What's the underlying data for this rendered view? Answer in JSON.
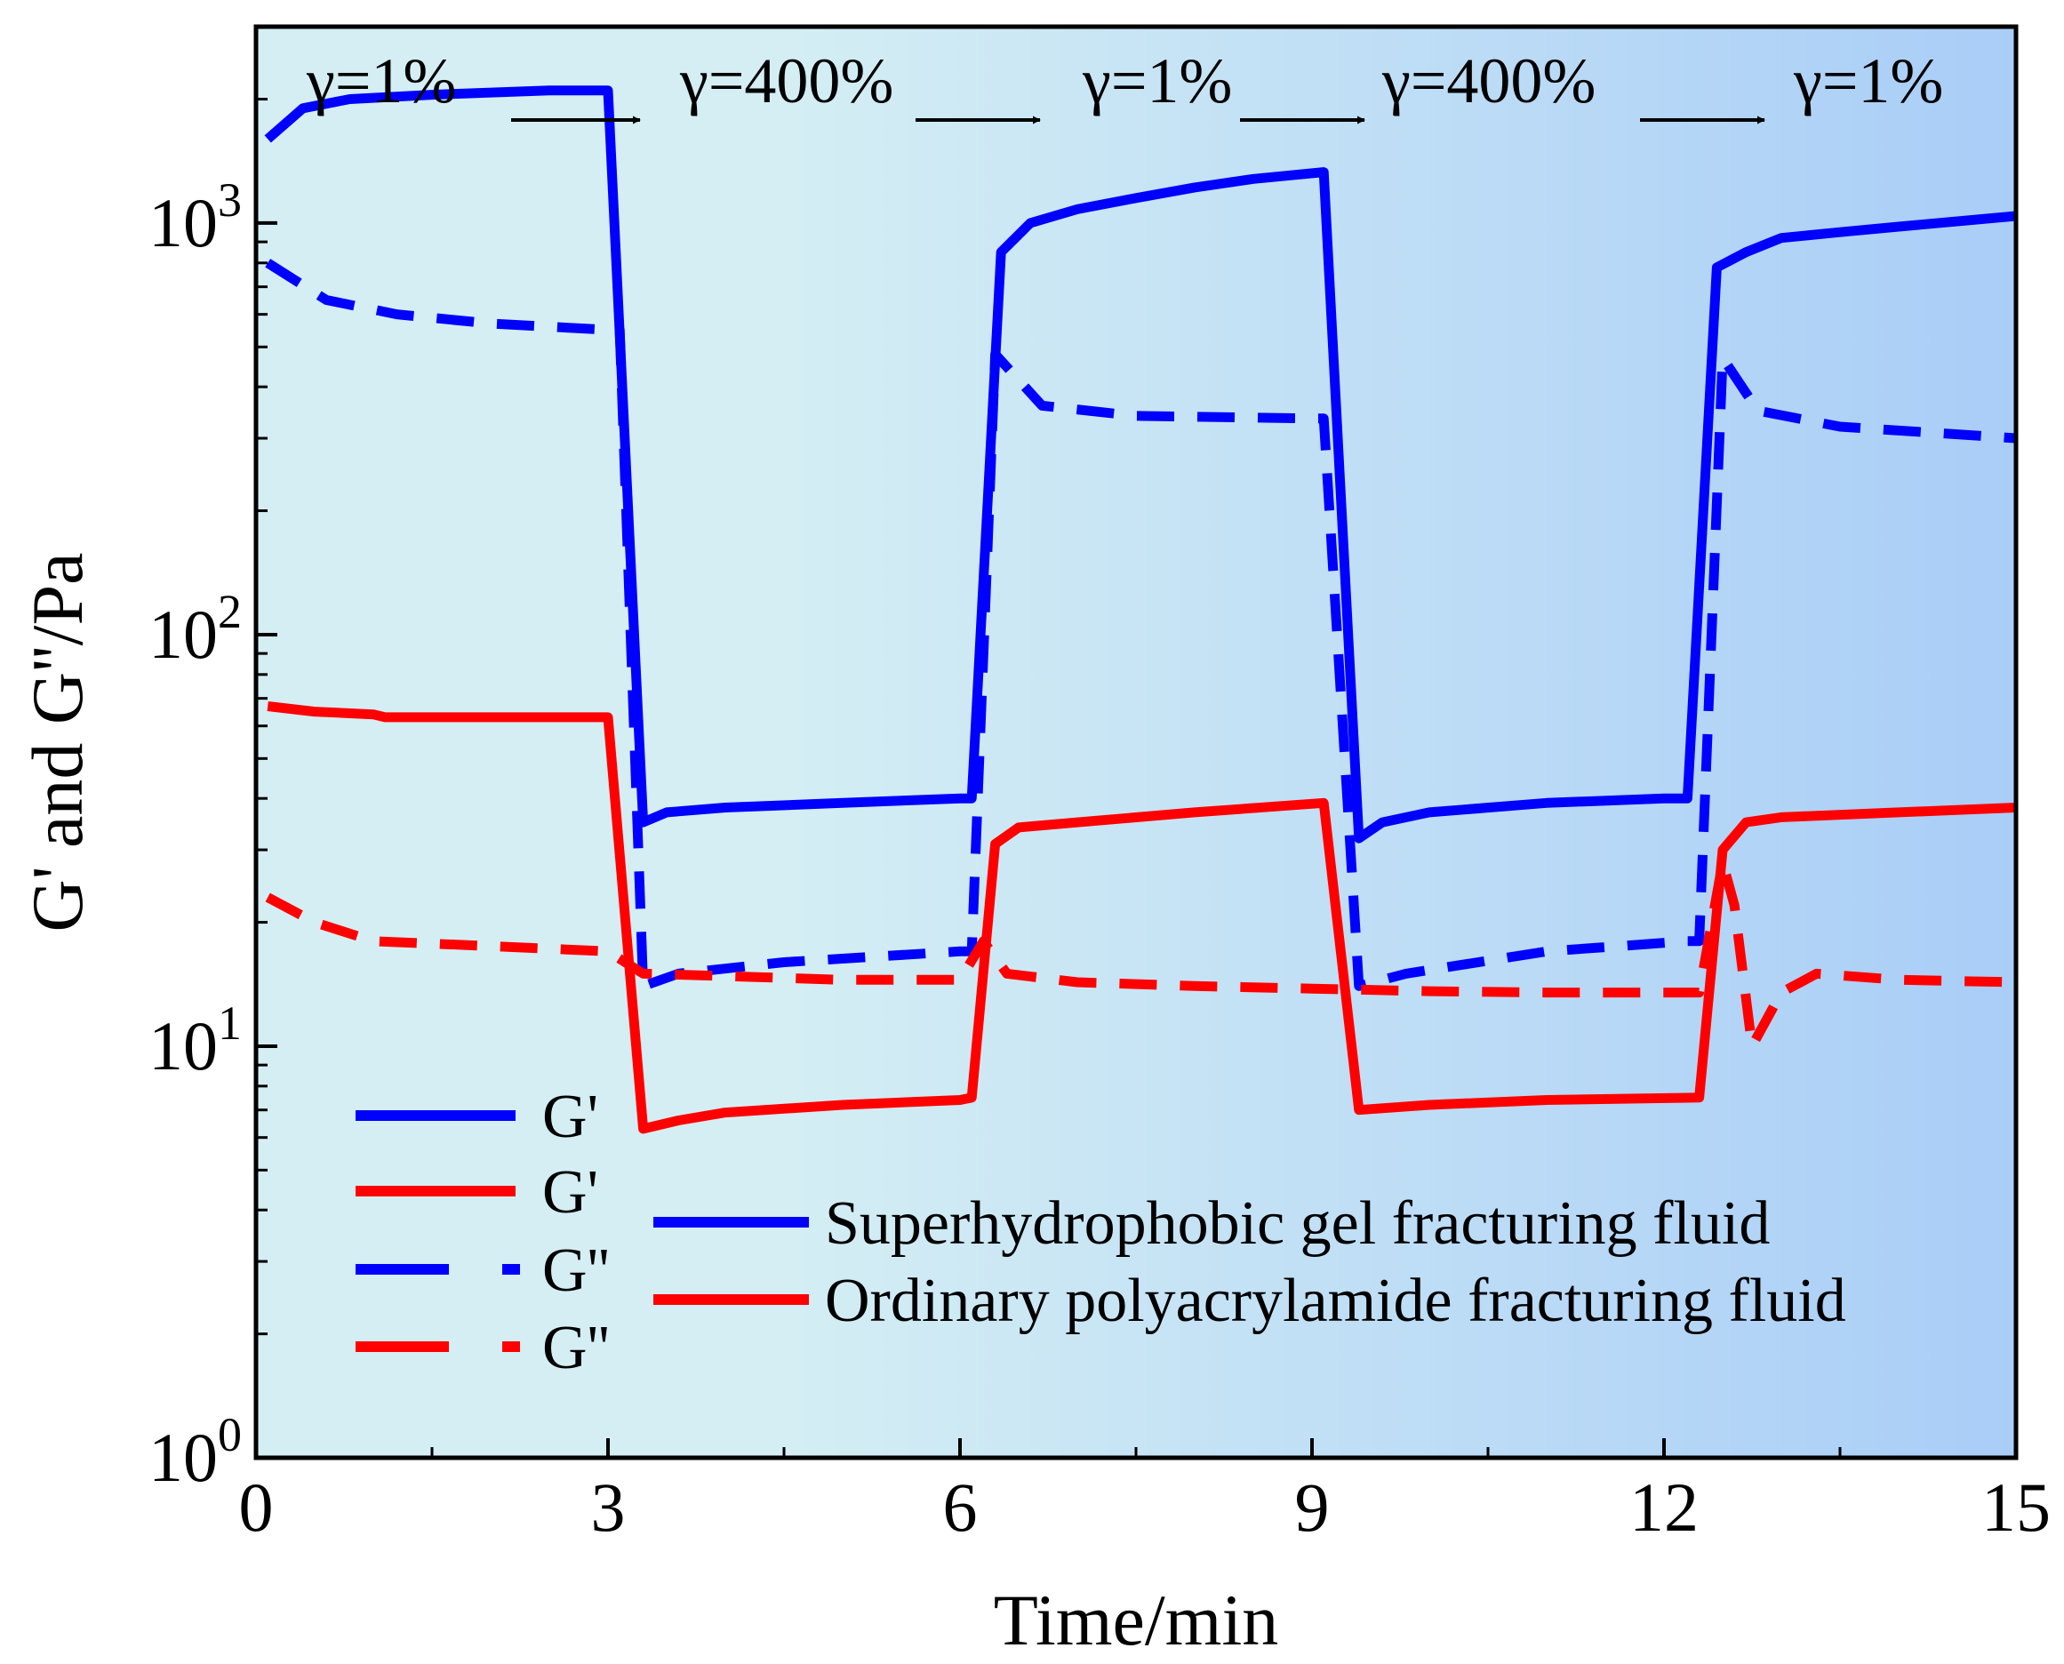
{
  "chart_data": {
    "type": "line",
    "title": "",
    "xlabel": "Time/min",
    "ylabel": "G' and G''/Pa",
    "xlim": [
      0,
      15
    ],
    "ylim": [
      1,
      3000
    ],
    "yscale": "log",
    "xticks": [
      0,
      3,
      6,
      9,
      12,
      15
    ],
    "xtick_labels": [
      "0",
      "3",
      "6",
      "9",
      "12",
      "15"
    ],
    "yticks": [
      1,
      10,
      100,
      1000
    ],
    "ytick_labels": [
      {
        "base": "10",
        "exp": "0"
      },
      {
        "base": "10",
        "exp": "1"
      },
      {
        "base": "10",
        "exp": "2"
      },
      {
        "base": "10",
        "exp": "3"
      }
    ],
    "background_colors": [
      "#d4eef4",
      "#a9cdf7"
    ],
    "series": [
      {
        "name": "G' superhydrophobic",
        "color": "#0000ff",
        "dash": "solid",
        "x": [
          0.1,
          0.4,
          0.8,
          1.5,
          2.5,
          3.0,
          3.3,
          3.5,
          4.0,
          5.0,
          6.0,
          6.1,
          6.35,
          6.6,
          7.0,
          7.5,
          8.0,
          8.5,
          9.1,
          9.4,
          9.6,
          10.0,
          11.0,
          12.0,
          12.2,
          12.45,
          12.7,
          13.0,
          13.5,
          14.0,
          15.0
        ],
        "values": [
          1600,
          1900,
          2000,
          2050,
          2100,
          2100,
          35,
          37,
          38,
          39,
          40,
          40,
          850,
          1000,
          1080,
          1150,
          1220,
          1280,
          1330,
          32,
          35,
          37,
          39,
          40,
          40,
          780,
          850,
          920,
          950,
          980,
          1040
        ]
      },
      {
        "name": "G'' superhydrophobic",
        "color": "#0000ff",
        "dash": "dashed",
        "x": [
          0.1,
          0.6,
          1.2,
          2.0,
          3.0,
          3.1,
          3.3,
          3.6,
          4.5,
          6.0,
          6.1,
          6.3,
          6.7,
          7.5,
          9.0,
          9.1,
          9.4,
          9.8,
          11.0,
          12.2,
          12.3,
          12.5,
          12.8,
          13.5,
          15.0
        ],
        "values": [
          800,
          650,
          600,
          570,
          550,
          550,
          14,
          15,
          16,
          17,
          17,
          480,
          360,
          340,
          335,
          335,
          14,
          15,
          17,
          18,
          18,
          470,
          350,
          320,
          300
        ]
      },
      {
        "name": "G' polyacrylamide",
        "color": "#ff0000",
        "dash": "solid",
        "x": [
          0.1,
          0.5,
          1.0,
          1.1,
          2.0,
          3.0,
          3.3,
          3.6,
          4.0,
          5.0,
          6.0,
          6.1,
          6.3,
          6.5,
          7.0,
          8.0,
          9.1,
          9.4,
          10.0,
          11.0,
          12.3,
          12.5,
          12.7,
          13.0,
          14.0,
          15.0
        ],
        "values": [
          67,
          65,
          64,
          63,
          63,
          63,
          6.3,
          6.6,
          6.9,
          7.2,
          7.4,
          7.5,
          31,
          34,
          35,
          37,
          39,
          7.0,
          7.2,
          7.4,
          7.5,
          30,
          35,
          36,
          37,
          38
        ]
      },
      {
        "name": "G'' polyacrylamide",
        "color": "#ff0000",
        "dash": "dashed",
        "x": [
          0.1,
          0.5,
          1.0,
          2.0,
          3.0,
          3.3,
          4.0,
          5.0,
          6.0,
          6.2,
          6.4,
          7.0,
          8.0,
          9.0,
          10.0,
          11.0,
          12.3,
          12.5,
          12.6,
          12.75,
          13.0,
          13.3,
          14.0,
          15.0
        ],
        "values": [
          23,
          20,
          18,
          17.5,
          17,
          15,
          14.8,
          14.5,
          14.5,
          18,
          15,
          14.3,
          14,
          13.8,
          13.6,
          13.5,
          13.5,
          28,
          22,
          10,
          13.5,
          15,
          14.5,
          14.3
        ]
      }
    ],
    "legend": {
      "position": "bottom-left",
      "entries": [
        {
          "label": "G'",
          "color": "#0000ff",
          "dash": "solid"
        },
        {
          "label": "G'",
          "color": "#ff0000",
          "dash": "solid"
        },
        {
          "label": "G''",
          "color": "#0000ff",
          "dash": "dashed"
        },
        {
          "label": "G''",
          "color": "#ff0000",
          "dash": "dashed"
        }
      ],
      "fluids": [
        {
          "label": "Superhydrophobic gel fracturing fluid",
          "color": "#0000ff"
        },
        {
          "label": "Ordinary polyacrylamide fracturing fluid",
          "color": "#ff0000"
        }
      ]
    },
    "annotations": [
      {
        "text": "γ=1%"
      },
      {
        "text": "γ=400%"
      },
      {
        "text": "γ=1%"
      },
      {
        "text": "γ=400%"
      },
      {
        "text": "γ=1%"
      }
    ]
  }
}
